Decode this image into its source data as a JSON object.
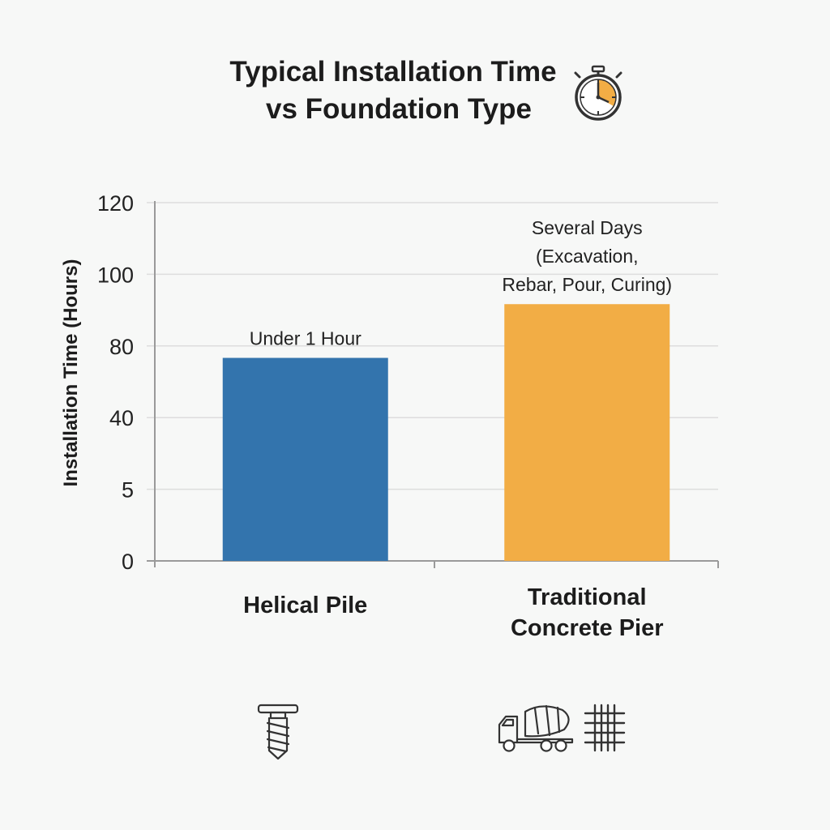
{
  "chart_data": {
    "type": "bar",
    "title_lines": [
      "Typical Installation Time",
      "vs Foundation Type"
    ],
    "ylabel": "Installation Time (Hours)",
    "xlabel": "",
    "y_ticks": [
      "0",
      "5",
      "40",
      "80",
      "100",
      "120"
    ],
    "categories": [
      {
        "lines": [
          "Helical Pile"
        ]
      },
      {
        "lines": [
          "Traditional",
          "Concrete Pier"
        ]
      }
    ],
    "values": [
      68,
      86
    ],
    "value_note": "Bar heights are read against the evenly spaced printed tick labels (0, 5, 40, 80, 100, 120), treated as equal steps; Helical Pile ≈ 68, Traditional Concrete Pier ≈ 86 on that visual scale.",
    "annotations": [
      {
        "lines": [
          "Under 1 Hour"
        ]
      },
      {
        "lines": [
          "Several Days",
          "(Excavation,",
          "Rebar, Pour, Curing)"
        ]
      }
    ],
    "ylim": [
      0,
      120
    ],
    "grid": true,
    "legend": "none",
    "colors": {
      "bars": [
        "#3374ad",
        "#f2ad45"
      ],
      "grid": "#dddddd",
      "axis": "#9a9a9a"
    },
    "icons": {
      "title": "stopwatch-icon",
      "categories": [
        "helical-screw-pile-icon",
        [
          "concrete-mixer-truck-icon",
          "rebar-grid-icon"
        ]
      ]
    }
  }
}
